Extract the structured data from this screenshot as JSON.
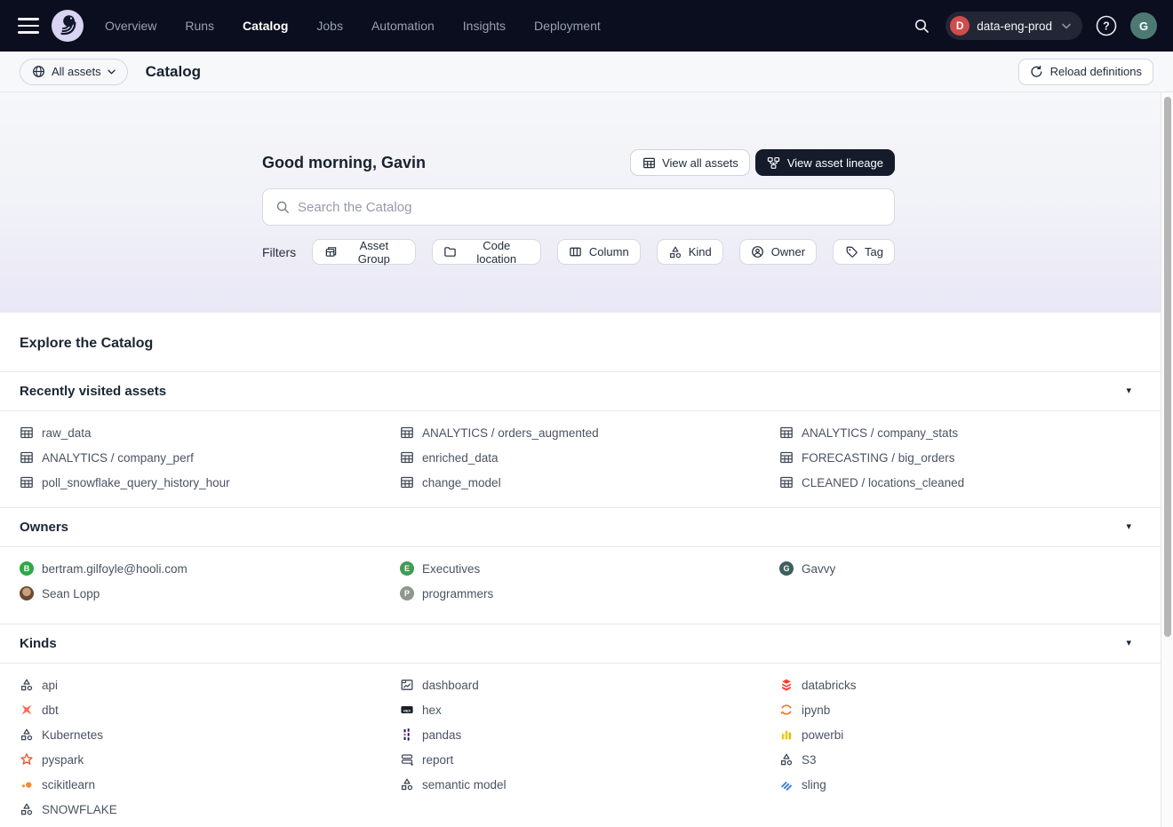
{
  "nav": {
    "links": [
      {
        "label": "Overview",
        "active": false
      },
      {
        "label": "Runs",
        "active": false
      },
      {
        "label": "Catalog",
        "active": true
      },
      {
        "label": "Jobs",
        "active": false
      },
      {
        "label": "Automation",
        "active": false
      },
      {
        "label": "Insights",
        "active": false
      },
      {
        "label": "Deployment",
        "active": false
      }
    ],
    "deployment": {
      "initial": "D",
      "name": "data-eng-prod",
      "badge_color": "#d04c4c"
    },
    "user_initial": "G",
    "user_avatar_color": "#4c7a72"
  },
  "header": {
    "scope_label": "All assets",
    "title": "Catalog",
    "reload_label": "Reload definitions"
  },
  "hero": {
    "greeting": "Good morning, Gavin",
    "view_all_label": "View all assets",
    "view_lineage_label": "View asset lineage",
    "search_placeholder": "Search the Catalog",
    "filters_label": "Filters",
    "filters": [
      {
        "label": "Asset Group",
        "icon": "asset-group"
      },
      {
        "label": "Code location",
        "icon": "folder"
      },
      {
        "label": "Column",
        "icon": "column"
      },
      {
        "label": "Kind",
        "icon": "shapes"
      },
      {
        "label": "Owner",
        "icon": "owner"
      },
      {
        "label": "Tag",
        "icon": "tag"
      }
    ]
  },
  "sections": {
    "explore_title": "Explore the Catalog",
    "recent": {
      "title": "Recently visited assets",
      "columns": [
        [
          {
            "label": "raw_data",
            "icon": "table"
          },
          {
            "label": "ANALYTICS / company_perf",
            "icon": "table"
          },
          {
            "label": "poll_snowflake_query_history_hour",
            "icon": "table"
          }
        ],
        [
          {
            "label": "ANALYTICS / orders_augmented",
            "icon": "table"
          },
          {
            "label": "enriched_data",
            "icon": "table"
          },
          {
            "label": "change_model",
            "icon": "table"
          }
        ],
        [
          {
            "label": "ANALYTICS / company_stats",
            "icon": "table"
          },
          {
            "label": "FORECASTING / big_orders",
            "icon": "table"
          },
          {
            "label": "CLEANED / locations_cleaned",
            "icon": "table"
          }
        ]
      ]
    },
    "owners": {
      "title": "Owners",
      "columns": [
        [
          {
            "label": "bertram.gilfoyle@hooli.com",
            "avatar": {
              "type": "letter",
              "letter": "B",
              "color": "#2fa848"
            }
          },
          {
            "label": "Sean Lopp",
            "avatar": {
              "type": "photo"
            }
          }
        ],
        [
          {
            "label": "Executives",
            "avatar": {
              "type": "letter",
              "letter": "E",
              "color": "#439b54"
            }
          },
          {
            "label": "programmers",
            "avatar": {
              "type": "letter",
              "letter": "P",
              "color": "#8f978e"
            }
          }
        ],
        [
          {
            "label": "Gavvy",
            "avatar": {
              "type": "letter",
              "letter": "G",
              "color": "#3e605d"
            }
          }
        ]
      ]
    },
    "kinds": {
      "title": "Kinds",
      "columns": [
        [
          {
            "label": "api",
            "icon": "shapes"
          },
          {
            "label": "dbt",
            "icon": "dbt"
          },
          {
            "label": "Kubernetes",
            "icon": "shapes"
          },
          {
            "label": "pyspark",
            "icon": "pyspark"
          },
          {
            "label": "scikitlearn",
            "icon": "scikitlearn"
          },
          {
            "label": "SNOWFLAKE",
            "icon": "shapes"
          }
        ],
        [
          {
            "label": "dashboard",
            "icon": "dashboard"
          },
          {
            "label": "hex",
            "icon": "hex"
          },
          {
            "label": "pandas",
            "icon": "pandas"
          },
          {
            "label": "report",
            "icon": "report"
          },
          {
            "label": "semantic model",
            "icon": "shapes"
          }
        ],
        [
          {
            "label": "databricks",
            "icon": "databricks"
          },
          {
            "label": "ipynb",
            "icon": "ipynb"
          },
          {
            "label": "powerbi",
            "icon": "powerbi"
          },
          {
            "label": "S3",
            "icon": "shapes"
          },
          {
            "label": "sling",
            "icon": "sling"
          }
        ]
      ]
    }
  }
}
